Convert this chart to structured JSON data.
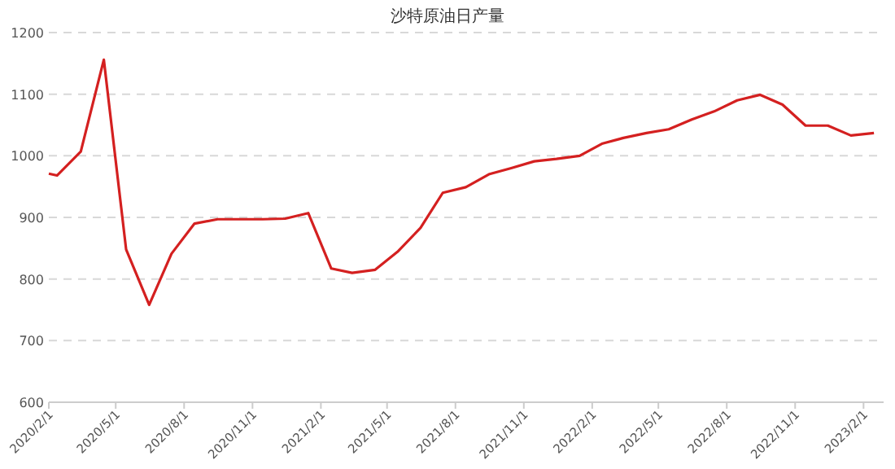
{
  "chart_data": {
    "type": "line",
    "title": "沙特原油日产量",
    "x": [
      "2020-02-01",
      "2020-02-12",
      "2020-03-15",
      "2020-04-15",
      "2020-05-15",
      "2020-06-15",
      "2020-07-15",
      "2020-08-15",
      "2020-09-15",
      "2020-10-15",
      "2020-11-15",
      "2020-12-15",
      "2021-01-15",
      "2021-02-15",
      "2021-03-15",
      "2021-04-15",
      "2021-05-15",
      "2021-06-15",
      "2021-07-15",
      "2021-08-15",
      "2021-09-15",
      "2021-10-15",
      "2021-11-15",
      "2021-12-15",
      "2022-01-15",
      "2022-02-15",
      "2022-03-15",
      "2022-04-15",
      "2022-05-15",
      "2022-06-15",
      "2022-07-15",
      "2022-08-15",
      "2022-09-15",
      "2022-10-15",
      "2022-11-15",
      "2022-12-15",
      "2023-01-15",
      "2023-02-15"
    ],
    "series": [
      {
        "color": "#d42020",
        "values": [
          971,
          968,
          1007,
          1156,
          848,
          758,
          841,
          890,
          897,
          897,
          897,
          898,
          907,
          817,
          810,
          815,
          844,
          883,
          940,
          949,
          970,
          980,
          991,
          995,
          1000,
          1020,
          1029,
          1037,
          1043,
          1059,
          1072,
          1090,
          1099,
          1083,
          1049,
          1049,
          1033,
          1037
        ]
      }
    ],
    "xlim": [
      "2020-02-01",
      "2023-02-28"
    ],
    "xticks": [
      {
        "value": "2020-02-01",
        "label": "2020/2/1"
      },
      {
        "value": "2020-05-01",
        "label": "2020/5/1"
      },
      {
        "value": "2020-08-01",
        "label": "2020/8/1"
      },
      {
        "value": "2020-11-01",
        "label": "2020/11/1"
      },
      {
        "value": "2021-02-01",
        "label": "2021/2/1"
      },
      {
        "value": "2021-05-01",
        "label": "2021/5/1"
      },
      {
        "value": "2021-08-01",
        "label": "2021/8/1"
      },
      {
        "value": "2021-11-01",
        "label": "2021/11/1"
      },
      {
        "value": "2022-02-01",
        "label": "2022/2/1"
      },
      {
        "value": "2022-05-01",
        "label": "2022/5/1"
      },
      {
        "value": "2022-08-01",
        "label": "2022/8/1"
      },
      {
        "value": "2022-11-01",
        "label": "2022/11/1"
      },
      {
        "value": "2023-02-01",
        "label": "2023/2/1"
      }
    ],
    "ylim": [
      600,
      1200
    ],
    "yticks": [
      600,
      700,
      800,
      900,
      1000,
      1100,
      1200
    ],
    "grid": "y",
    "line_style": "solid"
  }
}
